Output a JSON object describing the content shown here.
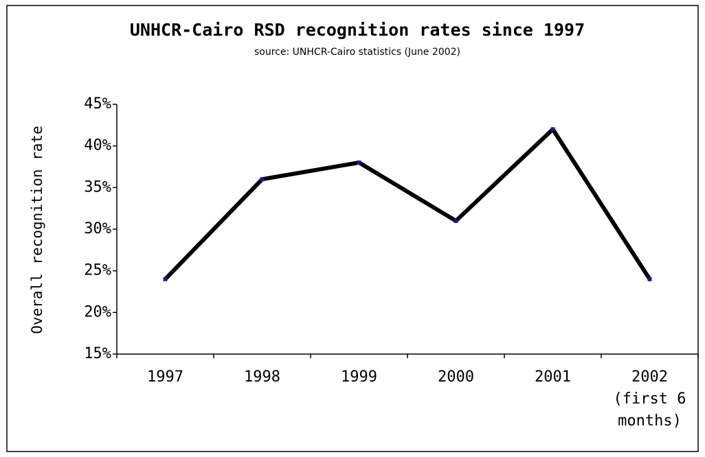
{
  "chart_data": {
    "type": "line",
    "title": "UNHCR-Cairo  RSD recognition rates since 1997",
    "subtitle": "source: UNHCR-Cairo statistics (June 2002)",
    "y_label": "Overall recognition rate",
    "categories": [
      "1997",
      "1998",
      "1999",
      "2000",
      "2001",
      "2002 (first 6 months)"
    ],
    "series": [
      {
        "name": "Overall recognition rate",
        "color": "#000000",
        "marker_color": "#1a1a8c",
        "values": [
          24,
          36,
          38,
          31,
          42,
          24
        ]
      }
    ],
    "ylim": [
      15,
      45
    ],
    "yticks": [
      {
        "value": 15,
        "label": "15%"
      },
      {
        "value": 20,
        "label": "20%"
      },
      {
        "value": 25,
        "label": "25%"
      },
      {
        "value": 30,
        "label": "30%"
      },
      {
        "value": 35,
        "label": "35%"
      },
      {
        "value": 40,
        "label": "40%"
      },
      {
        "value": 45,
        "label": "45%"
      }
    ],
    "grid": false
  }
}
